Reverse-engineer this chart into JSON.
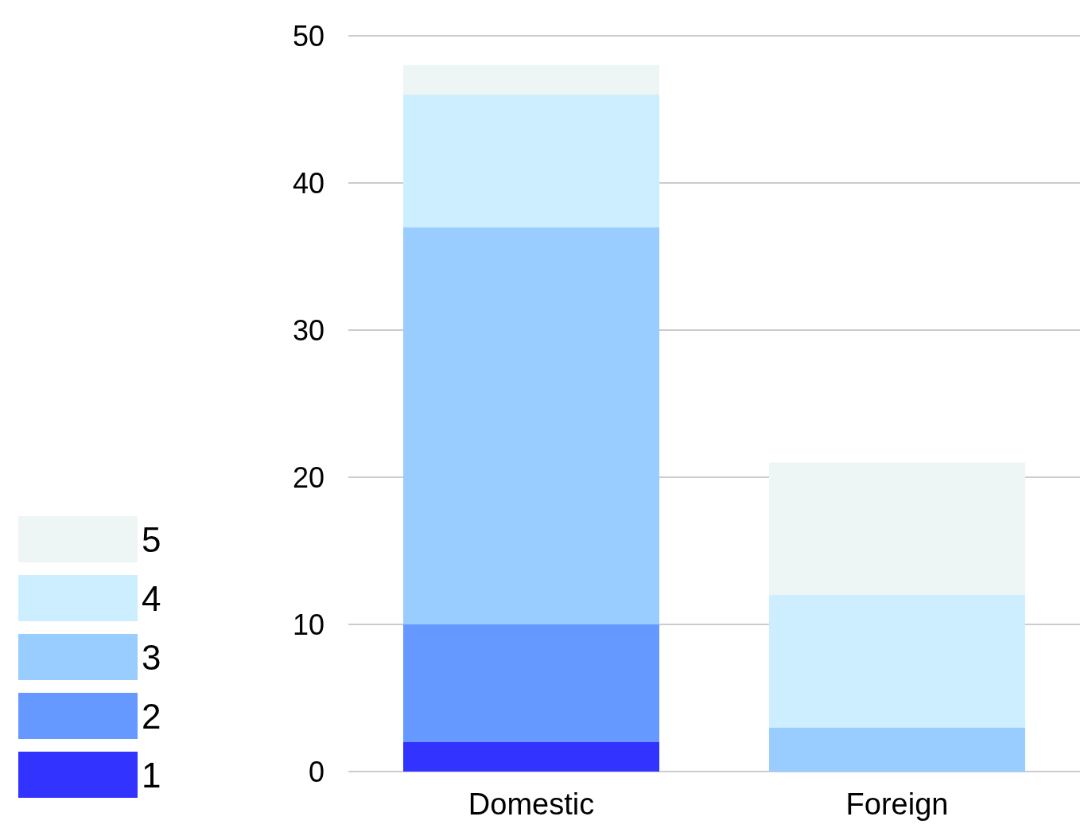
{
  "chart_data": {
    "type": "bar",
    "stacked": true,
    "categories": [
      "Domestic",
      "Foreign"
    ],
    "series": [
      {
        "name": "1",
        "color": "#3333ff",
        "values": [
          2,
          0
        ]
      },
      {
        "name": "2",
        "color": "#6699ff",
        "values": [
          8,
          0
        ]
      },
      {
        "name": "3",
        "color": "#99ccff",
        "values": [
          27,
          3
        ]
      },
      {
        "name": "4",
        "color": "#cceeff",
        "values": [
          9,
          9
        ]
      },
      {
        "name": "5",
        "color": "#eef5f5",
        "values": [
          2,
          9
        ]
      }
    ],
    "ylim": [
      0,
      50
    ],
    "yticks": [
      0,
      10,
      20,
      30,
      40,
      50
    ],
    "grid": "y",
    "legend": "left"
  }
}
